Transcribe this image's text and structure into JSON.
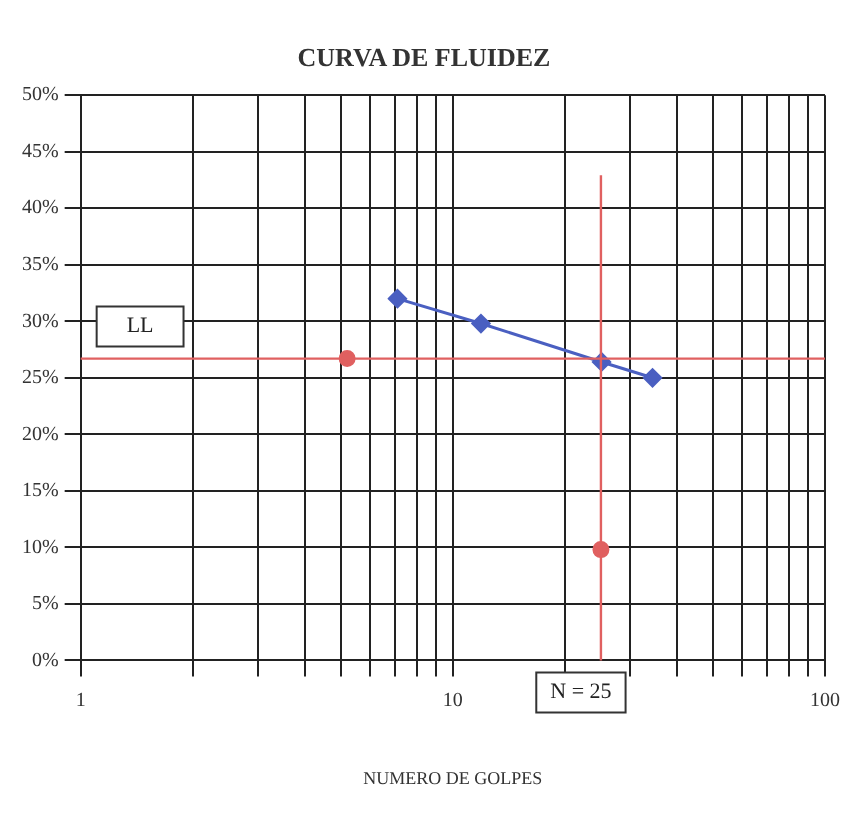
{
  "chart_data": {
    "type": "line",
    "title": "CURVA DE FLUIDEZ",
    "xlabel": "NUMERO DE GOLPES",
    "log": "x",
    "grid": true,
    "legend": false,
    "marker": "diamond",
    "line_style": "solid",
    "xlim": [
      1,
      100
    ],
    "xticks": [
      1,
      {
        "value": 2,
        "label": null
      },
      {
        "value": 3,
        "label": null
      },
      {
        "value": 4,
        "label": null
      },
      {
        "value": 5,
        "label": null
      },
      {
        "value": 6,
        "label": null
      },
      {
        "value": 7,
        "label": null
      },
      {
        "value": 8,
        "label": null
      },
      {
        "value": 9,
        "label": null
      },
      10,
      {
        "value": 20,
        "label": null
      },
      {
        "value": 30,
        "label": null
      },
      {
        "value": 40,
        "label": null
      },
      {
        "value": 50,
        "label": null
      },
      {
        "value": 60,
        "label": null
      },
      {
        "value": 70,
        "label": null
      },
      {
        "value": 80,
        "label": null
      },
      {
        "value": 90,
        "label": null
      },
      100
    ],
    "ylim": [
      0,
      50
    ],
    "yticks": [
      {
        "value": 0,
        "label": "0%"
      },
      {
        "value": 5,
        "label": "5%"
      },
      {
        "value": 10,
        "label": "10%"
      },
      {
        "value": 15,
        "label": "15%"
      },
      {
        "value": 20,
        "label": "20%"
      },
      {
        "value": 25,
        "label": "25%"
      },
      {
        "value": 30,
        "label": "30%"
      },
      {
        "value": 35,
        "label": "35%"
      },
      {
        "value": 40,
        "label": "40%"
      },
      {
        "value": 45,
        "label": "45%"
      },
      {
        "value": 50,
        "label": "50%"
      }
    ],
    "series": [
      {
        "color": "#4a5fc1",
        "x": [
          7.1,
          11.9,
          25.1,
          34.4
        ],
        "values": [
          32.0,
          29.8,
          26.4,
          25.0
        ]
      },
      {
        "type": "scatter",
        "color": "#e06060",
        "marker": "circle",
        "x": [
          5.2,
          25
        ],
        "values": [
          26.7,
          9.8
        ]
      }
    ],
    "ref_lines": [
      {
        "axis": "y",
        "value": 26.7,
        "label": "LL",
        "color": "#e06060"
      },
      {
        "axis": "x",
        "value": 25,
        "label": "N = 25",
        "color": "#e06060"
      }
    ]
  }
}
